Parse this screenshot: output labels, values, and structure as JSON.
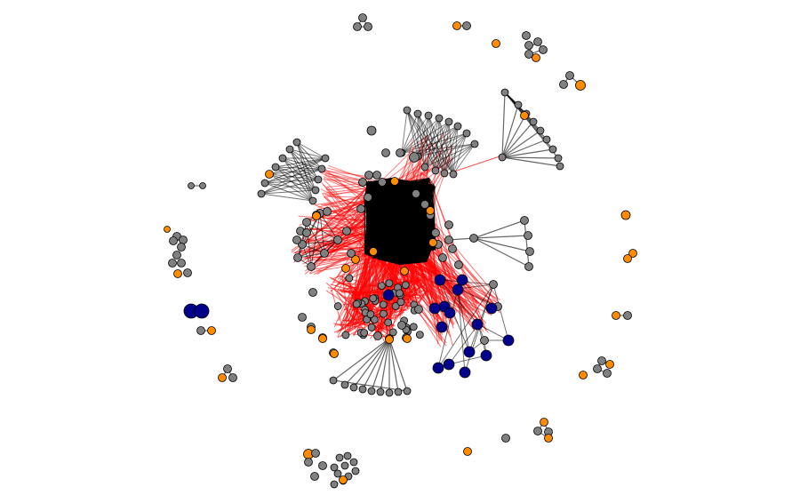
{
  "diagram": {
    "type": "network-graph",
    "background": "#ffffff",
    "colors": {
      "node_gray": "#808080",
      "node_orange": "#ff8c00",
      "node_blue": "#00008b",
      "node_stroke": "#000000",
      "edge_black": "#000000",
      "edge_red": "#ff0000"
    },
    "legend": null,
    "labels": []
  }
}
